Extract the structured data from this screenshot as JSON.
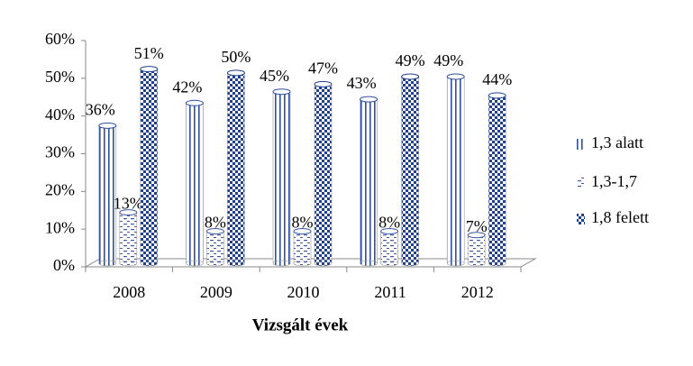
{
  "chart_data": {
    "type": "bar",
    "x_label": "Vizsgált évek",
    "categories": [
      "2008",
      "2009",
      "2010",
      "2011",
      "2012"
    ],
    "series": [
      {
        "name": "1,3 alatt",
        "color": "#2f4f9f",
        "pattern": "stripes",
        "values": [
          36,
          42,
          45,
          43,
          49
        ],
        "value_labels": [
          "36%",
          "42%",
          "45%",
          "43%",
          "49%"
        ]
      },
      {
        "name": "1,3-1,7",
        "color": "#3a5aa8",
        "pattern": "dashes",
        "values": [
          13,
          8,
          8,
          8,
          7
        ],
        "value_labels": [
          "13%",
          "8%",
          "8%",
          "8%",
          "7%"
        ]
      },
      {
        "name": "1,8 felett",
        "color": "#1f3f8f",
        "pattern": "checks",
        "values": [
          51,
          50,
          47,
          49,
          44
        ],
        "value_labels": [
          "51%",
          "50%",
          "47%",
          "49%",
          "44%"
        ]
      }
    ],
    "ylim": [
      0,
      60
    ],
    "yticks": [
      {
        "value": 0,
        "label": "0%"
      },
      {
        "value": 10,
        "label": "10%"
      },
      {
        "value": 20,
        "label": "20%"
      },
      {
        "value": 30,
        "label": "30%"
      },
      {
        "value": 40,
        "label": "40%"
      },
      {
        "value": 50,
        "label": "50%"
      },
      {
        "value": 60,
        "label": "60%"
      }
    ],
    "legend": "right"
  }
}
